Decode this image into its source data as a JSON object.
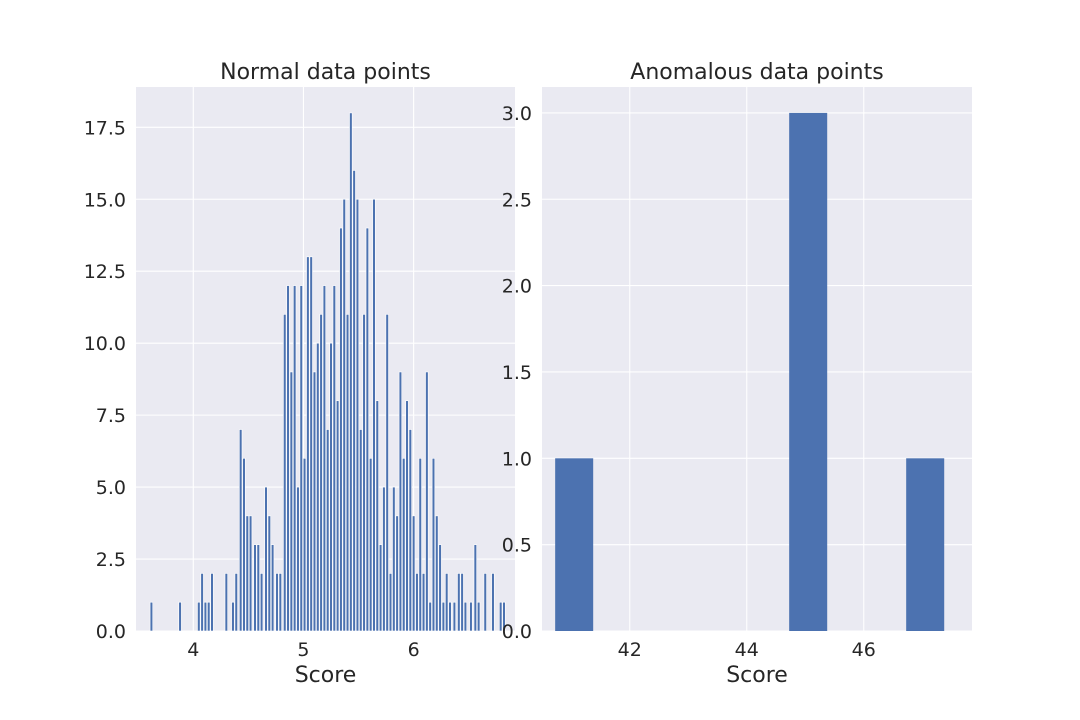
{
  "chart_data": [
    {
      "type": "bar",
      "title": "Normal data points",
      "xlabel": "Score",
      "ylabel": "",
      "xlim": [
        3.48,
        6.92
      ],
      "ylim": [
        0,
        18.9
      ],
      "xticks": [
        4,
        5,
        6
      ],
      "xtick_labels": [
        "4",
        "5",
        "6"
      ],
      "yticks": [
        0,
        2.5,
        5,
        7.5,
        10,
        12.5,
        15,
        17.5
      ],
      "ytick_labels": [
        "0.0",
        "2.5",
        "5.0",
        "7.5",
        "10.0",
        "12.5",
        "15.0",
        "17.5"
      ],
      "grid": true,
      "bar_width": 0.024,
      "bars": [
        {
          "x": 3.62,
          "y": 1
        },
        {
          "x": 3.88,
          "y": 1
        },
        {
          "x": 4.05,
          "y": 1
        },
        {
          "x": 4.08,
          "y": 2
        },
        {
          "x": 4.11,
          "y": 1
        },
        {
          "x": 4.14,
          "y": 1
        },
        {
          "x": 4.17,
          "y": 2
        },
        {
          "x": 4.3,
          "y": 2
        },
        {
          "x": 4.36,
          "y": 1
        },
        {
          "x": 4.39,
          "y": 2
        },
        {
          "x": 4.43,
          "y": 7
        },
        {
          "x": 4.46,
          "y": 6
        },
        {
          "x": 4.49,
          "y": 4
        },
        {
          "x": 4.52,
          "y": 4
        },
        {
          "x": 4.56,
          "y": 3
        },
        {
          "x": 4.59,
          "y": 3
        },
        {
          "x": 4.62,
          "y": 2
        },
        {
          "x": 4.66,
          "y": 5
        },
        {
          "x": 4.69,
          "y": 4
        },
        {
          "x": 4.72,
          "y": 3
        },
        {
          "x": 4.76,
          "y": 2
        },
        {
          "x": 4.79,
          "y": 2
        },
        {
          "x": 4.83,
          "y": 11
        },
        {
          "x": 4.86,
          "y": 12
        },
        {
          "x": 4.89,
          "y": 9
        },
        {
          "x": 4.92,
          "y": 12
        },
        {
          "x": 4.95,
          "y": 5
        },
        {
          "x": 4.98,
          "y": 12
        },
        {
          "x": 5.01,
          "y": 6
        },
        {
          "x": 5.04,
          "y": 13
        },
        {
          "x": 5.07,
          "y": 13
        },
        {
          "x": 5.1,
          "y": 9
        },
        {
          "x": 5.13,
          "y": 10
        },
        {
          "x": 5.16,
          "y": 11
        },
        {
          "x": 5.19,
          "y": 12
        },
        {
          "x": 5.22,
          "y": 7
        },
        {
          "x": 5.25,
          "y": 10
        },
        {
          "x": 5.28,
          "y": 12
        },
        {
          "x": 5.31,
          "y": 8
        },
        {
          "x": 5.34,
          "y": 14
        },
        {
          "x": 5.37,
          "y": 15
        },
        {
          "x": 5.4,
          "y": 11
        },
        {
          "x": 5.43,
          "y": 18
        },
        {
          "x": 5.46,
          "y": 16
        },
        {
          "x": 5.49,
          "y": 15
        },
        {
          "x": 5.52,
          "y": 7
        },
        {
          "x": 5.55,
          "y": 11
        },
        {
          "x": 5.58,
          "y": 14
        },
        {
          "x": 5.61,
          "y": 6
        },
        {
          "x": 5.64,
          "y": 15
        },
        {
          "x": 5.67,
          "y": 8
        },
        {
          "x": 5.7,
          "y": 3
        },
        {
          "x": 5.73,
          "y": 5
        },
        {
          "x": 5.76,
          "y": 11
        },
        {
          "x": 5.79,
          "y": 2
        },
        {
          "x": 5.82,
          "y": 5
        },
        {
          "x": 5.85,
          "y": 4
        },
        {
          "x": 5.88,
          "y": 9
        },
        {
          "x": 5.91,
          "y": 6
        },
        {
          "x": 5.94,
          "y": 8
        },
        {
          "x": 5.97,
          "y": 7
        },
        {
          "x": 6.0,
          "y": 4
        },
        {
          "x": 6.03,
          "y": 2
        },
        {
          "x": 6.06,
          "y": 6
        },
        {
          "x": 6.09,
          "y": 2
        },
        {
          "x": 6.12,
          "y": 9
        },
        {
          "x": 6.15,
          "y": 1
        },
        {
          "x": 6.18,
          "y": 6
        },
        {
          "x": 6.21,
          "y": 4
        },
        {
          "x": 6.24,
          "y": 3
        },
        {
          "x": 6.27,
          "y": 1
        },
        {
          "x": 6.3,
          "y": 2
        },
        {
          "x": 6.33,
          "y": 1
        },
        {
          "x": 6.37,
          "y": 1
        },
        {
          "x": 6.41,
          "y": 2
        },
        {
          "x": 6.44,
          "y": 2
        },
        {
          "x": 6.47,
          "y": 1
        },
        {
          "x": 6.52,
          "y": 1
        },
        {
          "x": 6.56,
          "y": 3
        },
        {
          "x": 6.59,
          "y": 1
        },
        {
          "x": 6.65,
          "y": 2
        },
        {
          "x": 6.72,
          "y": 2
        },
        {
          "x": 6.79,
          "y": 1
        },
        {
          "x": 6.82,
          "y": 1
        }
      ]
    },
    {
      "type": "bar",
      "title": "Anomalous data points",
      "xlabel": "Score",
      "ylabel": "",
      "xlim": [
        40.5,
        47.85
      ],
      "ylim": [
        0,
        3.15
      ],
      "xticks": [
        42,
        44,
        46
      ],
      "xtick_labels": [
        "42",
        "44",
        "46"
      ],
      "yticks": [
        0,
        0.5,
        1,
        1.5,
        2,
        2.5,
        3
      ],
      "ytick_labels": [
        "0.0",
        "0.5",
        "1.0",
        "1.5",
        "2.0",
        "2.5",
        "3.0"
      ],
      "grid": true,
      "bar_width": 0.65,
      "bars": [
        {
          "x": 41.05,
          "y": 1
        },
        {
          "x": 45.05,
          "y": 3
        },
        {
          "x": 47.05,
          "y": 1
        }
      ]
    }
  ]
}
